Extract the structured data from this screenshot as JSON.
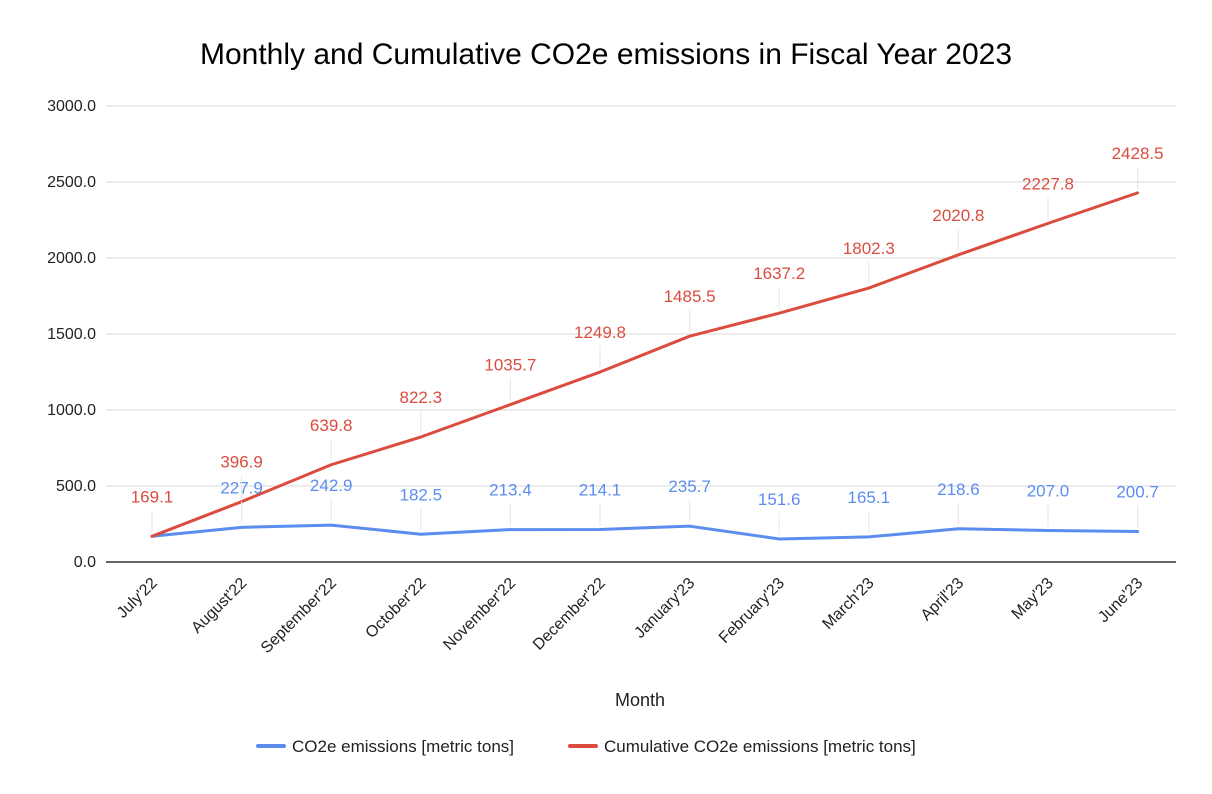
{
  "chart_data": {
    "type": "line",
    "title": "Monthly and Cumulative CO2e emissions in Fiscal Year 2023",
    "xlabel": "Month",
    "ylabel": "",
    "ylim": [
      0,
      3000
    ],
    "yticks": [
      "0.0",
      "500.0",
      "1000.0",
      "1500.0",
      "2000.0",
      "2500.0",
      "3000.0"
    ],
    "categories": [
      "July'22",
      "August'22",
      "September'22",
      "October'22",
      "November'22",
      "December'22",
      "January'23",
      "February'23",
      "March'23",
      "April'23",
      "May'23",
      "June'23"
    ],
    "grid": true,
    "legend_position": "bottom",
    "series": [
      {
        "name": "CO2e emissions [metric tons]",
        "color": "#5b8def",
        "values": [
          169.1,
          227.9,
          242.9,
          182.5,
          213.4,
          214.1,
          235.7,
          151.6,
          165.1,
          218.6,
          207.0,
          200.7
        ],
        "labels": [
          "",
          "227.9",
          "242.9",
          "182.5",
          "213.4",
          "214.1",
          "235.7",
          "151.6",
          "165.1",
          "218.6",
          "207.0",
          "200.7"
        ]
      },
      {
        "name": "Cumulative CO2e emissions [metric tons]",
        "color": "#db4c3f",
        "values": [
          169.1,
          396.9,
          639.8,
          822.3,
          1035.7,
          1249.8,
          1485.5,
          1637.2,
          1802.3,
          2020.8,
          2227.8,
          2428.5
        ],
        "labels": [
          "169.1",
          "396.9",
          "639.8",
          "822.3",
          "1035.7",
          "1249.8",
          "1485.5",
          "1637.2",
          "1802.3",
          "2020.8",
          "2227.8",
          "2428.5"
        ]
      }
    ]
  }
}
